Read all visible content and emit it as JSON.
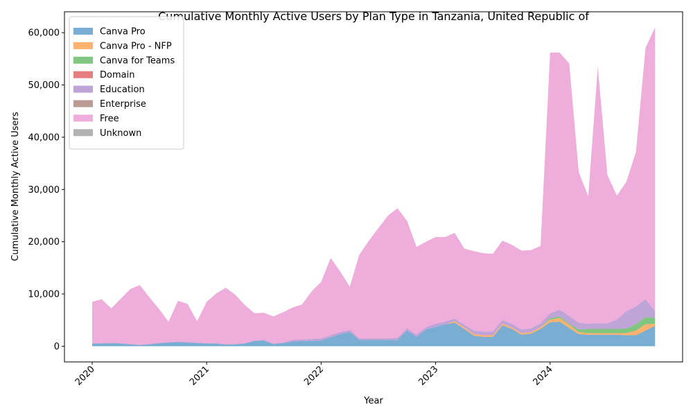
{
  "chart_data": {
    "type": "area",
    "stacked": true,
    "title": "Cumulative Monthly Active Users by Plan Type in Tanzania, United Republic of",
    "xlabel": "Year",
    "ylabel": "Cumulative Monthly Active Users",
    "x_start_year": 2020,
    "x_ticks": [
      "2020",
      "2021",
      "2022",
      "2023",
      "2024"
    ],
    "y_ticks": [
      "0",
      "10,000",
      "20,000",
      "30,000",
      "40,000",
      "50,000",
      "60,000"
    ],
    "ylim": [
      -3000,
      64000
    ],
    "grid": false,
    "legend_position": "top-left",
    "x": [
      "2020-01",
      "2020-02",
      "2020-03",
      "2020-04",
      "2020-05",
      "2020-06",
      "2020-07",
      "2020-08",
      "2020-09",
      "2020-10",
      "2020-11",
      "2020-12",
      "2021-01",
      "2021-02",
      "2021-03",
      "2021-04",
      "2021-05",
      "2021-06",
      "2021-07",
      "2021-08",
      "2021-09",
      "2021-10",
      "2021-11",
      "2021-12",
      "2022-01",
      "2022-02",
      "2022-03",
      "2022-04",
      "2022-05",
      "2022-06",
      "2022-07",
      "2022-08",
      "2022-09",
      "2022-10",
      "2022-11",
      "2022-12",
      "2023-01",
      "2023-02",
      "2023-03",
      "2023-04",
      "2023-05",
      "2023-06",
      "2023-07",
      "2023-08",
      "2023-09",
      "2023-10",
      "2023-11",
      "2023-12",
      "2024-01",
      "2024-02",
      "2024-03",
      "2024-04",
      "2024-05",
      "2024-06",
      "2024-07",
      "2024-08",
      "2024-09",
      "2024-10",
      "2024-11",
      "2024-12"
    ],
    "series": [
      {
        "name": "Canva Pro",
        "color": "#1f77b4",
        "values": [
          500,
          500,
          550,
          500,
          350,
          200,
          350,
          550,
          700,
          800,
          700,
          600,
          500,
          500,
          300,
          350,
          500,
          1000,
          1100,
          400,
          600,
          900,
          1000,
          1000,
          1100,
          1700,
          2300,
          2700,
          1200,
          1200,
          1200,
          1200,
          1200,
          3000,
          1800,
          3200,
          3700,
          4200,
          4500,
          3300,
          2000,
          1800,
          1800,
          4000,
          3300,
          2200,
          2400,
          3300,
          4600,
          4700,
          3500,
          2300,
          2200,
          2200,
          2200,
          2200,
          2100,
          2100,
          3000,
          3900
        ]
      },
      {
        "name": "Canva Pro - NFP",
        "color": "#ff7f0e",
        "values": [
          0,
          0,
          0,
          0,
          0,
          0,
          0,
          0,
          0,
          0,
          0,
          0,
          0,
          0,
          0,
          0,
          0,
          0,
          0,
          0,
          0,
          0,
          0,
          0,
          0,
          0,
          0,
          0,
          0,
          0,
          0,
          0,
          0,
          0,
          0,
          0,
          0,
          0,
          300,
          300,
          300,
          300,
          300,
          300,
          300,
          300,
          300,
          300,
          500,
          700,
          600,
          400,
          300,
          300,
          300,
          300,
          400,
          900,
          1200,
          400
        ]
      },
      {
        "name": "Canva for Teams",
        "color": "#2ca02c",
        "values": [
          0,
          0,
          0,
          0,
          0,
          0,
          0,
          0,
          0,
          0,
          0,
          0,
          0,
          0,
          0,
          0,
          0,
          0,
          0,
          0,
          0,
          0,
          0,
          0,
          0,
          0,
          0,
          0,
          0,
          0,
          0,
          0,
          0,
          0,
          0,
          0,
          0,
          0,
          0,
          0,
          0,
          0,
          0,
          0,
          0,
          0,
          0,
          0,
          300,
          300,
          200,
          500,
          800,
          800,
          800,
          800,
          900,
          1200,
          1400,
          1100
        ]
      },
      {
        "name": "Domain",
        "color": "#d62728",
        "values": [
          0,
          0,
          0,
          0,
          0,
          0,
          0,
          0,
          0,
          0,
          0,
          0,
          0,
          0,
          0,
          0,
          0,
          0,
          0,
          0,
          0,
          0,
          0,
          0,
          0,
          0,
          0,
          0,
          0,
          0,
          0,
          0,
          0,
          0,
          0,
          0,
          0,
          0,
          0,
          0,
          0,
          0,
          0,
          0,
          0,
          0,
          0,
          0,
          0,
          0,
          0,
          0,
          0,
          0,
          0,
          0,
          0,
          0,
          0,
          0
        ]
      },
      {
        "name": "Education",
        "color": "#9467bd",
        "values": [
          100,
          100,
          100,
          100,
          100,
          100,
          100,
          100,
          100,
          100,
          100,
          100,
          100,
          100,
          100,
          100,
          100,
          100,
          100,
          100,
          100,
          300,
          300,
          400,
          400,
          400,
          400,
          400,
          300,
          300,
          300,
          300,
          400,
          400,
          400,
          500,
          600,
          500,
          500,
          500,
          700,
          700,
          700,
          700,
          700,
          700,
          700,
          800,
          900,
          1300,
          1500,
          1300,
          1000,
          1100,
          1100,
          1800,
          3300,
          3400,
          3400,
          1300
        ]
      },
      {
        "name": "Enterprise",
        "color": "#8c564b",
        "values": [
          0,
          0,
          0,
          0,
          0,
          0,
          0,
          0,
          0,
          0,
          0,
          0,
          0,
          0,
          0,
          0,
          0,
          0,
          0,
          0,
          0,
          0,
          0,
          0,
          0,
          0,
          0,
          0,
          0,
          0,
          0,
          0,
          0,
          0,
          0,
          0,
          0,
          0,
          0,
          0,
          0,
          0,
          0,
          0,
          0,
          0,
          0,
          0,
          0,
          0,
          0,
          0,
          0,
          0,
          0,
          0,
          0,
          0,
          0,
          0
        ]
      },
      {
        "name": "Free",
        "color": "#e377c2",
        "values": [
          7900,
          8400,
          6600,
          8500,
          10500,
          11400,
          8900,
          6500,
          3900,
          7800,
          7300,
          4100,
          7900,
          9500,
          10800,
          9400,
          7300,
          5200,
          5200,
          5200,
          5800,
          6200,
          6700,
          9100,
          10800,
          14800,
          11600,
          8300,
          16000,
          18700,
          21100,
          23500,
          24800,
          20600,
          16800,
          16300,
          16600,
          16200,
          16400,
          14600,
          15200,
          15000,
          14900,
          15200,
          15100,
          15100,
          15000,
          14800,
          49900,
          49200,
          48300,
          28800,
          24400,
          49100,
          28400,
          23700,
          24800,
          29600,
          48100,
          54300
        ]
      },
      {
        "name": "Unknown",
        "color": "#7f7f7f",
        "values": [
          0,
          0,
          0,
          0,
          0,
          0,
          0,
          0,
          0,
          0,
          0,
          0,
          0,
          0,
          0,
          0,
          0,
          0,
          0,
          0,
          0,
          0,
          0,
          0,
          0,
          0,
          0,
          0,
          0,
          0,
          0,
          0,
          0,
          0,
          0,
          0,
          0,
          0,
          0,
          0,
          0,
          0,
          0,
          0,
          0,
          0,
          0,
          0,
          0,
          0,
          0,
          0,
          0,
          0,
          0,
          0,
          0,
          0,
          0,
          0
        ]
      }
    ]
  }
}
